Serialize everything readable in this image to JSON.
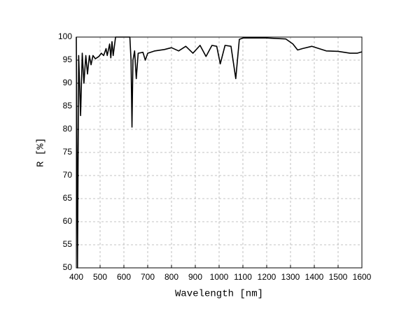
{
  "chart_data": {
    "type": "line",
    "xlabel": "Wavelength [nm]",
    "ylabel": "R [%]",
    "x": [
      400,
      405,
      410,
      418,
      425,
      432,
      440,
      447,
      455,
      462,
      470,
      480,
      495,
      505,
      515,
      525,
      530,
      540,
      545,
      550,
      555,
      565,
      625,
      630,
      634,
      638,
      645,
      652,
      660,
      680,
      690,
      700,
      730,
      770,
      800,
      830,
      860,
      890,
      920,
      945,
      970,
      990,
      1005,
      1025,
      1050,
      1070,
      1085,
      1100,
      1200,
      1280,
      1310,
      1330,
      1350,
      1390,
      1420,
      1450,
      1500,
      1550,
      1580,
      1600
    ],
    "values": [
      100,
      50,
      96,
      83,
      96.5,
      90,
      96,
      92,
      96,
      94,
      96,
      95.3,
      95.8,
      96.5,
      96,
      97.5,
      96,
      98.5,
      95.5,
      99,
      96,
      100,
      100,
      95,
      80.5,
      95,
      97,
      91,
      96.5,
      96.7,
      95,
      96.5,
      97,
      97.3,
      97.7,
      97,
      98,
      96.5,
      98.2,
      95.8,
      98.2,
      98,
      94.2,
      98.2,
      98,
      91,
      99.5,
      99.8,
      99.8,
      99.6,
      98.5,
      97.2,
      97.5,
      98,
      97.5,
      97,
      96.9,
      96.5,
      96.5,
      96.8
    ],
    "color": "#000000",
    "xlim": [
      400,
      1600
    ],
    "xticks": [
      400,
      500,
      600,
      700,
      800,
      900,
      1000,
      1100,
      1200,
      1300,
      1400,
      1500,
      1600
    ],
    "ylim": [
      50,
      100
    ],
    "yticks": [
      50,
      55,
      60,
      65,
      70,
      75,
      80,
      85,
      90,
      95,
      100
    ],
    "grid": true
  }
}
